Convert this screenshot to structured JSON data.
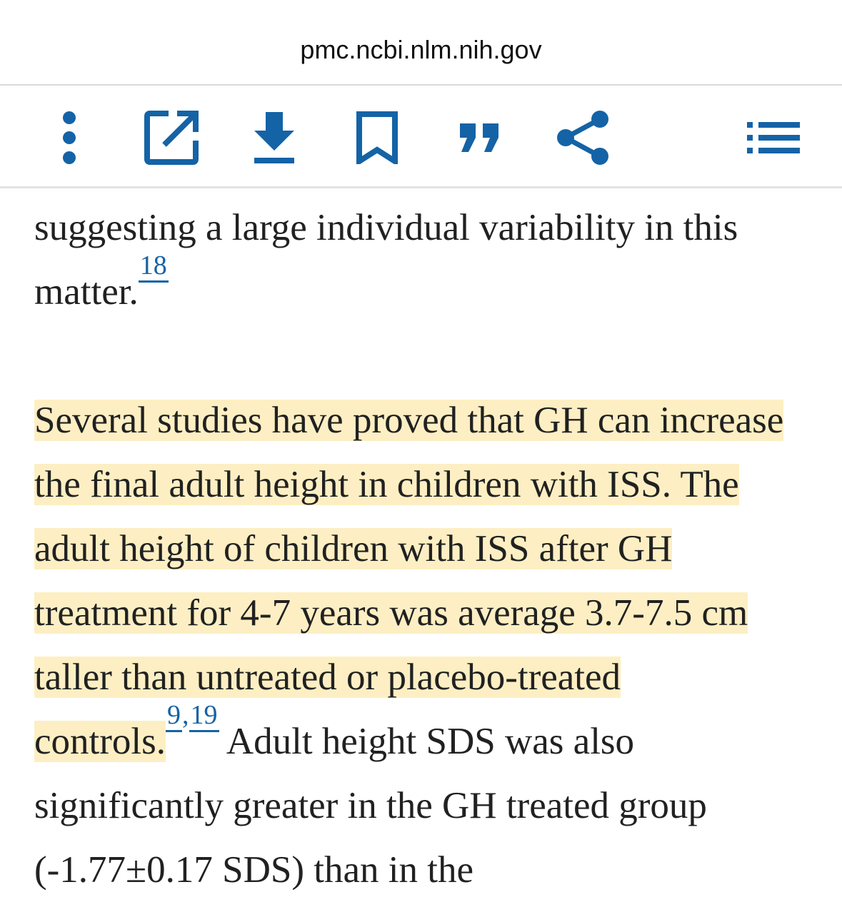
{
  "browser": {
    "url": "pmc.ncbi.nlm.nih.gov"
  },
  "toolbar": {
    "accent_color": "#1463a6",
    "icons": [
      "more-vert-icon",
      "open-in-new-icon",
      "download-icon",
      "bookmark-icon",
      "cite-quote-icon",
      "share-icon",
      "toc-list-icon"
    ]
  },
  "article": {
    "p1": {
      "text": "suggesting a large individual variability in this matter.",
      "ref": "18"
    },
    "p2": {
      "highlight": "Several studies have proved that GH can increase the final adult height in children with ISS. The adult height of children with ISS after GH treatment for 4-7 years was average 3.7-7.5 cm taller than untreated or placebo-treated controls.",
      "ref_a": "9",
      "ref_sep": ",",
      "ref_b": "19",
      "rest": " Adult height SDS was also significantly greater in the GH treated group (-1.77±0.17 SDS) than in the"
    }
  }
}
